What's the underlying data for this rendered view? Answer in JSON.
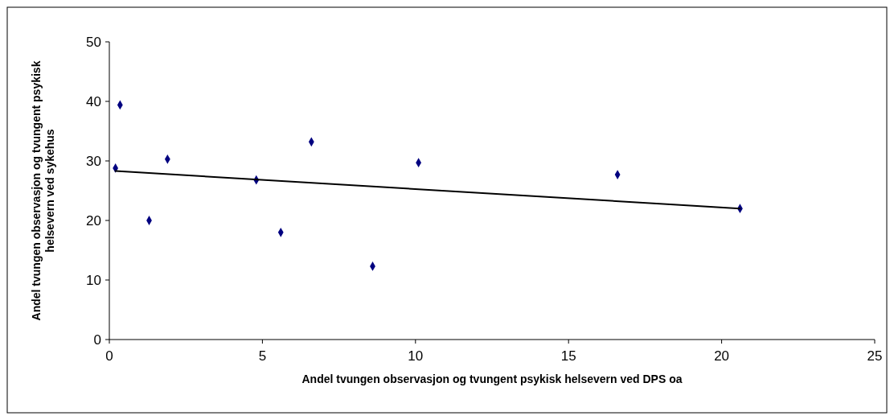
{
  "chart_data": {
    "type": "scatter",
    "xlabel": "Andel tvungen observasjon og tvungent psykisk helsevern ved DPS oa",
    "ylabel": "Andel tvungen observasjon og tvungent psykisk helsevern ved sykehus",
    "xlim": [
      0,
      25
    ],
    "xticks": [
      0,
      5,
      10,
      15,
      20,
      25
    ],
    "ylim": [
      0,
      50
    ],
    "yticks": [
      0,
      10,
      20,
      30,
      40,
      50
    ],
    "grid": false,
    "series": [
      {
        "marker": "diamond",
        "color": "#000080",
        "x": [
          0.2,
          0.35,
          1.3,
          1.9,
          4.8,
          5.6,
          6.6,
          8.6,
          10.1,
          16.6,
          20.6
        ],
        "values": [
          28.8,
          39.4,
          20.0,
          30.3,
          26.8,
          18.0,
          33.2,
          12.3,
          29.7,
          27.7,
          22.0
        ]
      },
      {
        "type": "line",
        "color": "#000000",
        "x": [
          0.2,
          20.6
        ],
        "values": [
          28.3,
          22.0
        ]
      }
    ]
  }
}
